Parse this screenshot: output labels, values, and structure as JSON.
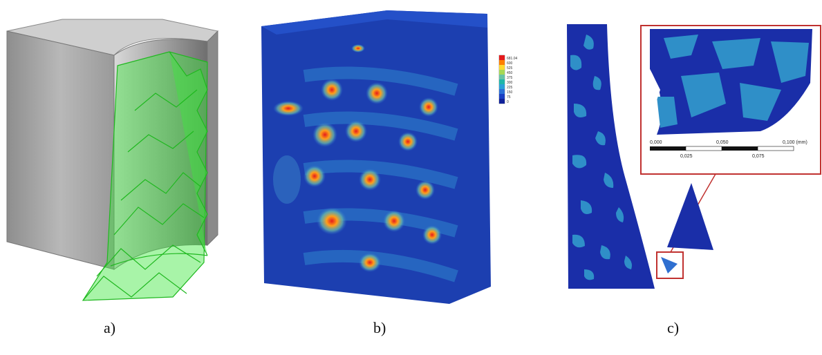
{
  "captions": {
    "a": "a)",
    "b": "b)",
    "c": "c)"
  },
  "legend_b": {
    "values": [
      "681.04",
      "600",
      "525",
      "450",
      "375",
      "300",
      "225",
      "150",
      "75",
      "0"
    ],
    "colors": [
      "#e41a1c",
      "#ff7f00",
      "#ffd92f",
      "#a6d854",
      "#66c2a5",
      "#1fb6a8",
      "#29a0d8",
      "#2b6fd6",
      "#1a3fc4",
      "#10229a"
    ]
  },
  "scalebar_c": {
    "top_labels": [
      "0,000",
      "0,050",
      "0,100 (mm)"
    ],
    "bottom_labels": [
      "0,025",
      "0,075"
    ]
  },
  "colors": {
    "solid_gray": "#a9a9a9",
    "tool_green": "#3ee63e",
    "stress_blue": "#1c3fb0",
    "mesh_dark_blue": "#1a2ea8",
    "mesh_light_blue": "#2f8fc8",
    "zoom_frame": "#c0312f"
  }
}
